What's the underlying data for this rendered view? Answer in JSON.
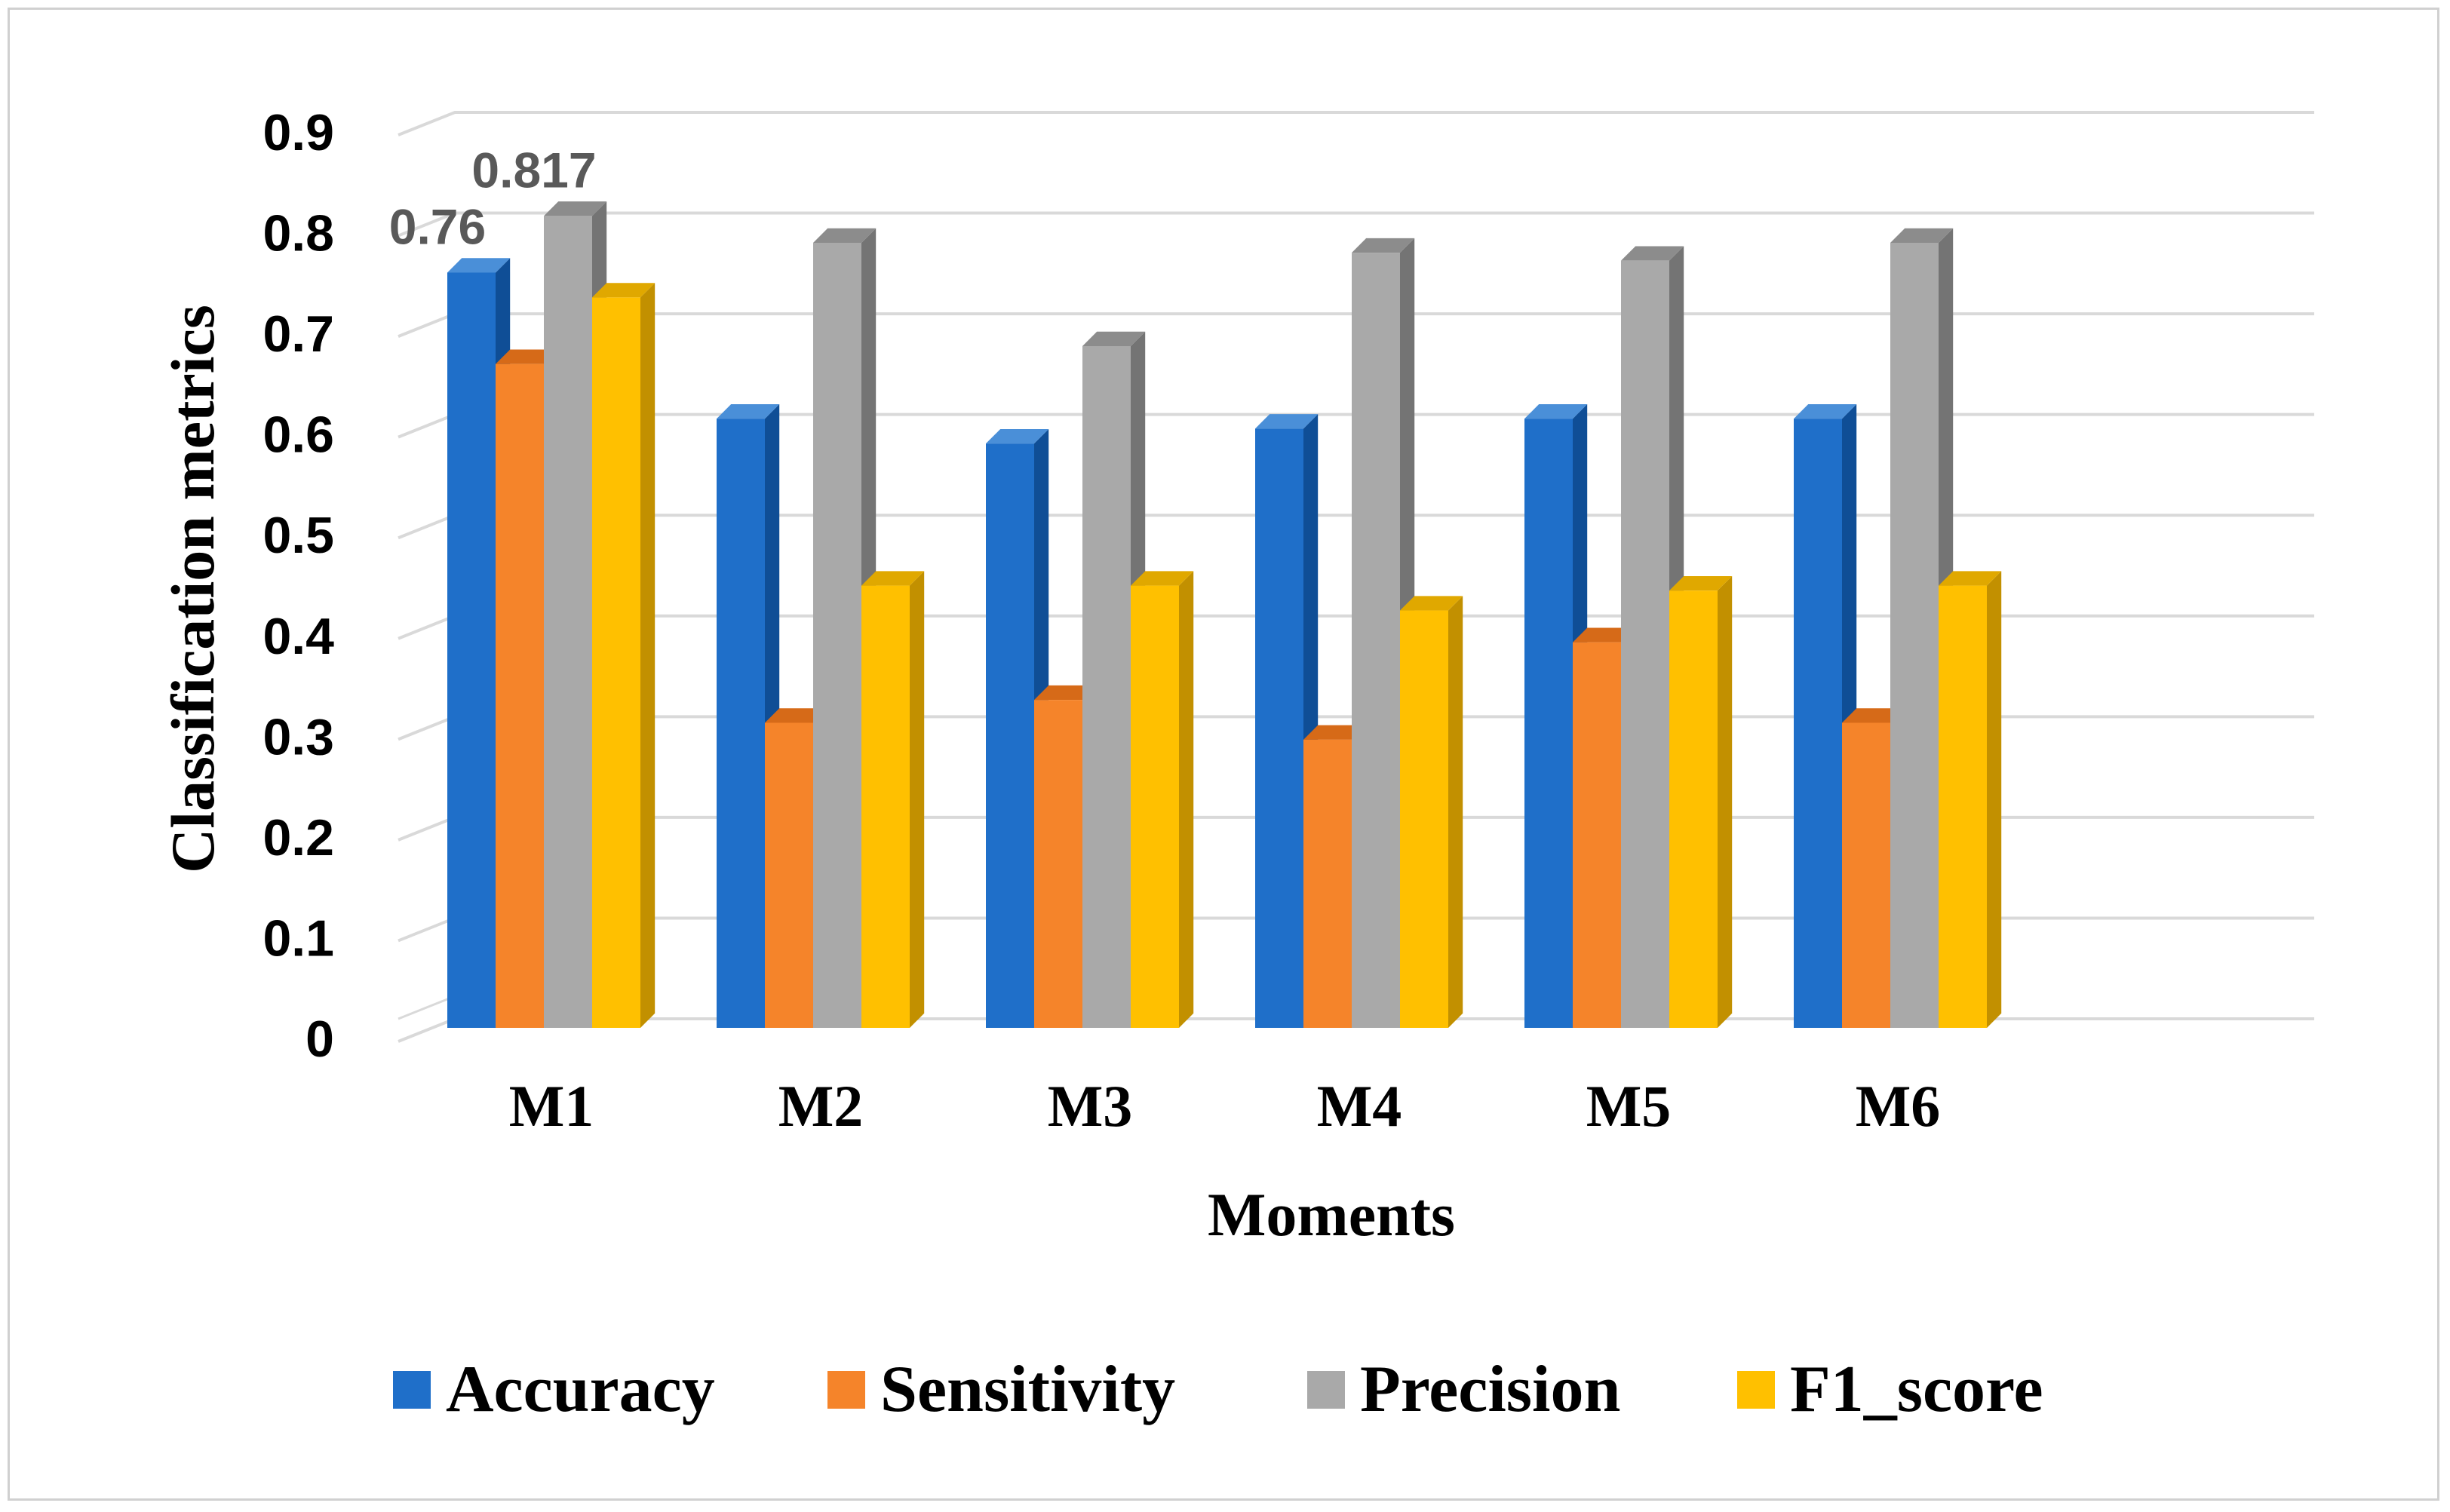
{
  "chart_data": {
    "type": "bar",
    "title": "",
    "xlabel": "Moments",
    "ylabel": "Classification metrics",
    "ylim": [
      0,
      0.9
    ],
    "yticks": [
      "0",
      "0.1",
      "0.2",
      "0.3",
      "0.4",
      "0.5",
      "0.6",
      "0.7",
      "0.8",
      "0.9"
    ],
    "grid": true,
    "legend_position": "bottom",
    "categories": [
      "M1",
      "M2",
      "M3",
      "M4",
      "M5",
      "M6"
    ],
    "series": [
      {
        "name": "Accuracy",
        "color": "#1f6fc9",
        "side": "#0f4e96",
        "top": "#4a8fd8",
        "values": [
          0.76,
          0.613,
          0.588,
          0.603,
          0.613,
          0.613
        ]
      },
      {
        "name": "Sensitivity",
        "color": "#f5842a",
        "side": "#b85a12",
        "top": "#d66a18",
        "values": [
          0.668,
          0.307,
          0.33,
          0.29,
          0.388,
          0.307
        ]
      },
      {
        "name": "Precision",
        "color": "#a9a9a9",
        "side": "#747474",
        "top": "#8c8c8c",
        "values": [
          0.817,
          0.79,
          0.686,
          0.78,
          0.772,
          0.79
        ]
      },
      {
        "name": "F1_score",
        "color": "#ffc000",
        "side": "#c29000",
        "top": "#e0a800",
        "values": [
          0.735,
          0.445,
          0.445,
          0.42,
          0.44,
          0.445
        ]
      }
    ],
    "data_labels": [
      {
        "series": 0,
        "category": 0,
        "text": "0.76"
      },
      {
        "series": 2,
        "category": 0,
        "text": "0.817"
      }
    ]
  }
}
